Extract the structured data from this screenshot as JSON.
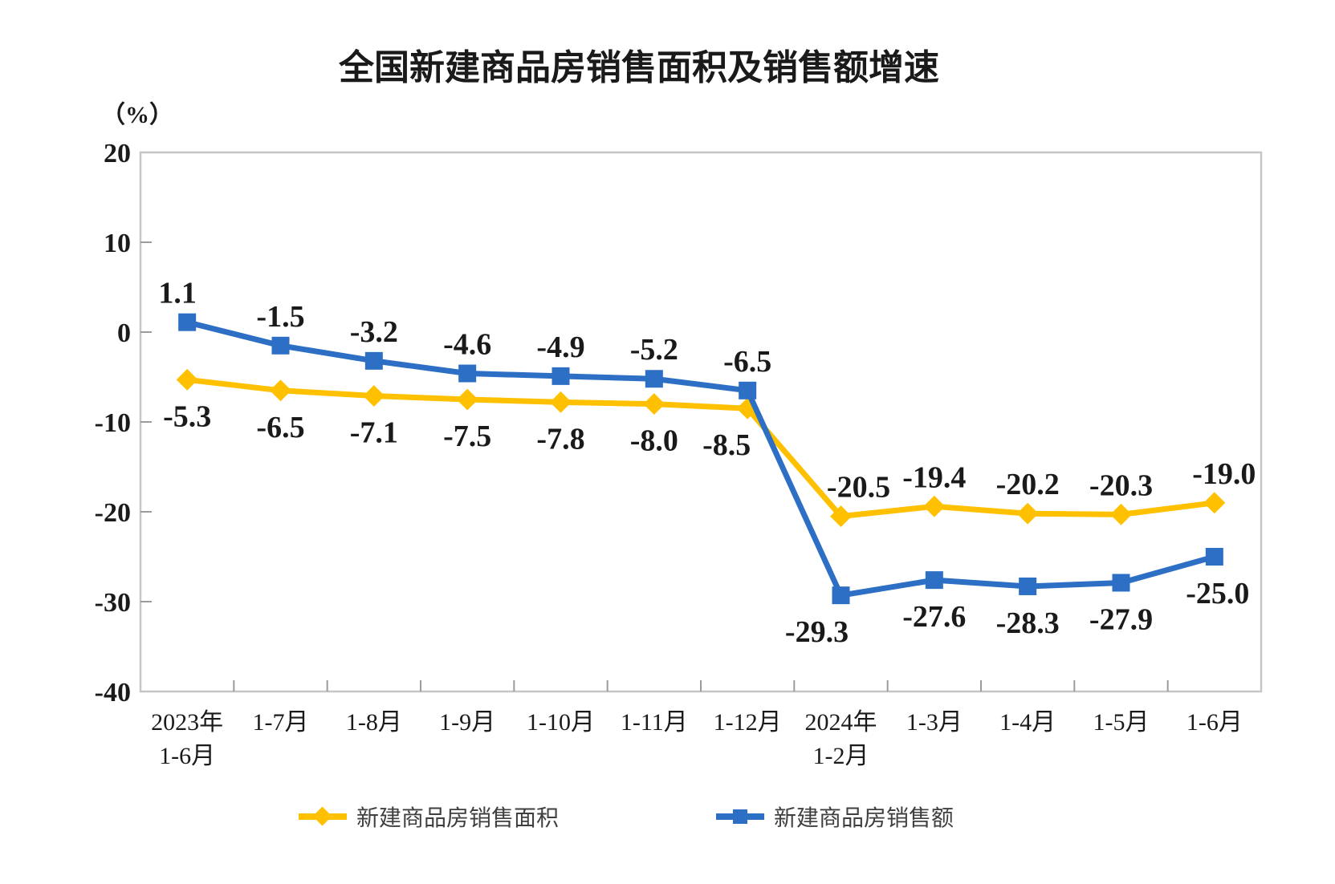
{
  "page": {
    "background": "#FFFFFF"
  },
  "chart_data": {
    "type": "line",
    "title": "全国新建商品房销售面积及销售额增速",
    "unit_label": "（%）",
    "categories": [
      "2023年\n1-6月",
      "1-7月",
      "1-8月",
      "1-9月",
      "1-10月",
      "1-11月",
      "1-12月",
      "2024年\n1-2月",
      "1-3月",
      "1-4月",
      "1-5月",
      "1-6月"
    ],
    "y_axis": {
      "min": -40,
      "max": 20,
      "step": 10,
      "ticks": [
        20,
        10,
        0,
        -10,
        -20,
        -30,
        -40
      ]
    },
    "grid": "off",
    "legend_position": "bottom",
    "frame_color": "#C6C6C6",
    "tick_color": "#9B9B9B",
    "text_color": "#1A1A1A",
    "series": [
      {
        "name": "新建商品房销售面积",
        "color": "#FFC000",
        "marker": "diamond",
        "values": [
          -5.3,
          -6.5,
          -7.1,
          -7.5,
          -7.8,
          -8.0,
          -8.5,
          -20.5,
          -19.4,
          -20.2,
          -20.3,
          -19.0
        ],
        "label_sides": [
          "below",
          "below",
          "below",
          "below",
          "below",
          "below",
          "below",
          "above",
          "above",
          "above",
          "above",
          "above"
        ]
      },
      {
        "name": "新建商品房销售额",
        "color": "#2D6FC4",
        "marker": "square",
        "values": [
          1.1,
          -1.5,
          -3.2,
          -4.6,
          -4.9,
          -5.2,
          -6.5,
          -29.3,
          -27.6,
          -28.3,
          -27.9,
          -25.0
        ],
        "label_sides": [
          "above",
          "above",
          "above",
          "above",
          "above",
          "above",
          "above",
          "below",
          "below",
          "below",
          "below",
          "below"
        ]
      }
    ]
  }
}
